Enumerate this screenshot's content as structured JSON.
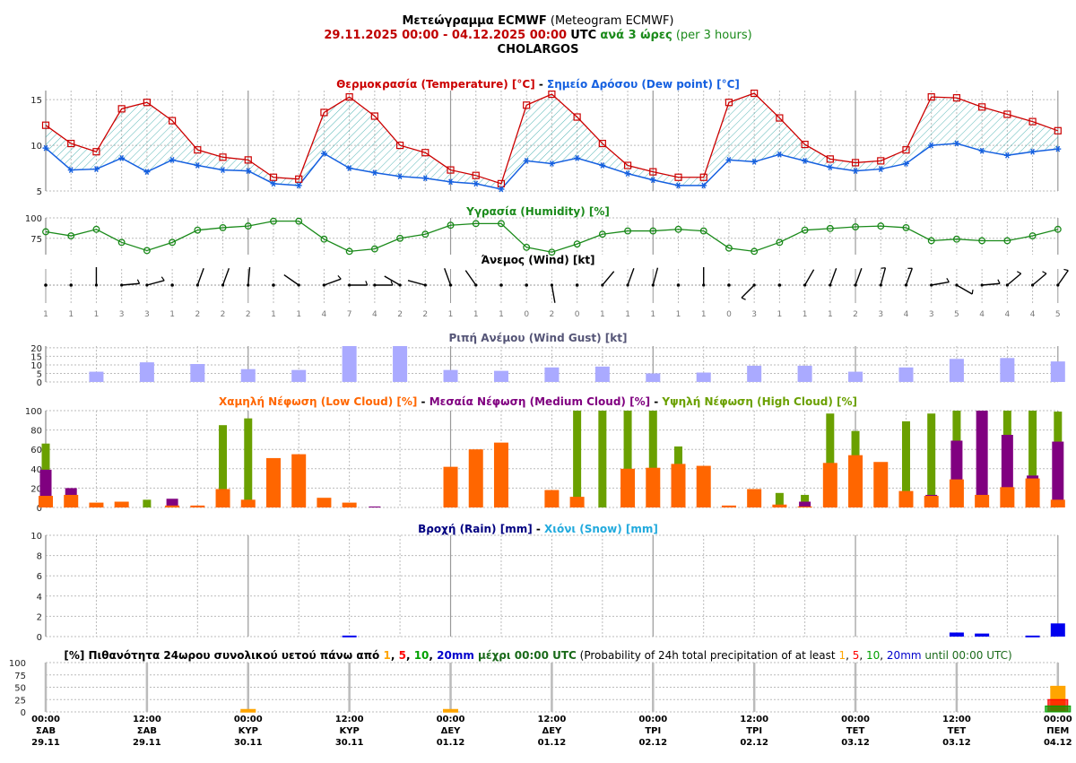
{
  "header": {
    "title_bold": "Μετεώγραμμα ECMWF",
    "title_en": "(Meteogram ECMWF)",
    "date_range": "29.11.2025 00:00 - 04.12.2025 00:00",
    "utc": "UTC",
    "interval_gr": "ανά 3 ώρες",
    "interval_en": "(per 3 hours)",
    "location": "CHOLARGOS"
  },
  "colors": {
    "temperature": "#cc0000",
    "dewpoint": "#1560e0",
    "humidity": "#1a8a1a",
    "gust": "#aaaaff",
    "low_cloud": "#ff6600",
    "medium_cloud": "#800080",
    "high_cloud": "#6aa000",
    "rain": "#0000ee",
    "snow": "#22aadd",
    "prob1": "#ffa500",
    "prob5": "#ff0000",
    "prob10": "#00a000",
    "prob20": "#0000cc"
  },
  "chart_data": [
    {
      "type": "line",
      "id": "temperature",
      "title_gr1": "Θερμοκρασία (Temperature) [°C]",
      "sep": " - ",
      "title_gr2": "Σημείο Δρόσου (Dew point) [°C]",
      "yticks": [
        5,
        10,
        15
      ],
      "ylim": [
        5,
        16
      ],
      "series": [
        {
          "name": "Temperature",
          "values": [
            12.2,
            10.2,
            9.3,
            14.0,
            14.7,
            12.7,
            9.5,
            8.7,
            8.4,
            6.5,
            6.3,
            13.6,
            15.3,
            13.2,
            10.0,
            9.2,
            7.3,
            6.7,
            5.8,
            14.4,
            15.6,
            13.1,
            10.2,
            7.8,
            7.1,
            6.5,
            6.5,
            14.7,
            15.7,
            13.0,
            10.1,
            8.5,
            8.1,
            8.3,
            9.5,
            15.3,
            15.2,
            14.2,
            13.4,
            12.6,
            11.6
          ]
        },
        {
          "name": "Dew point",
          "values": [
            9.7,
            7.3,
            7.4,
            8.6,
            7.1,
            8.4,
            7.8,
            7.3,
            7.2,
            5.8,
            5.6,
            9.1,
            7.5,
            7.0,
            6.6,
            6.4,
            6.0,
            5.8,
            5.2,
            8.3,
            8.0,
            8.6,
            7.8,
            6.9,
            6.2,
            5.6,
            5.6,
            8.4,
            8.2,
            9.0,
            8.3,
            7.6,
            7.2,
            7.4,
            8.0,
            10.0,
            10.2,
            9.4,
            8.9,
            9.3,
            9.6
          ]
        }
      ]
    },
    {
      "type": "line",
      "id": "humidity",
      "title": "Υγρασία (Humidity) [%]",
      "yticks": [
        75,
        100
      ],
      "ylim": [
        55,
        100
      ],
      "values": [
        83,
        78,
        86,
        70,
        60,
        70,
        85,
        88,
        90,
        96,
        96,
        74,
        59,
        62,
        75,
        80,
        91,
        93,
        93,
        64,
        58,
        68,
        80,
        84,
        84,
        86,
        84,
        63,
        59,
        70,
        85,
        87,
        89,
        90,
        88,
        72,
        74,
        72,
        72,
        78,
        86
      ]
    },
    {
      "type": "barbs",
      "id": "wind",
      "title": "Άνεμος (Wind) [kt]",
      "speed": [
        1,
        1,
        1,
        3,
        3,
        1,
        2,
        2,
        2,
        1,
        1,
        4,
        7,
        4,
        2,
        2,
        1,
        1,
        1,
        0,
        2,
        0,
        1,
        1,
        1,
        1,
        1,
        0,
        3,
        1,
        1,
        1,
        2,
        3,
        4,
        3,
        5,
        4,
        4,
        4,
        5
      ],
      "direction_deg": [
        null,
        null,
        0,
        85,
        75,
        null,
        20,
        20,
        5,
        null,
        305,
        70,
        90,
        90,
        300,
        285,
        340,
        325,
        null,
        null,
        170,
        null,
        40,
        20,
        15,
        null,
        0,
        null,
        225,
        null,
        30,
        20,
        20,
        15,
        20,
        80,
        120,
        85,
        50,
        50,
        35
      ]
    },
    {
      "type": "bar",
      "id": "gust",
      "title": "Ριπή Ανέμου (Wind Gust) [kt]",
      "yticks": [
        0,
        5,
        10,
        15,
        20
      ],
      "ylim": [
        0,
        21
      ],
      "step_index": 2,
      "start_index": 2,
      "values": [
        6,
        11.5,
        10.5,
        7.5,
        7,
        21,
        21,
        7,
        6.5,
        8.5,
        9,
        5,
        5.5,
        9.5,
        9.5,
        6,
        8.5,
        13.5,
        14,
        12
      ]
    },
    {
      "type": "bar",
      "id": "clouds",
      "title_low": "Χαμηλή Νέφωση (Low Cloud) [%]",
      "title_med": "Μεσαία Νέφωση (Medium Cloud) [%]",
      "title_high": "Υψηλή Νέφωση (High Cloud) [%]",
      "sep": " - ",
      "yticks": [
        0,
        20,
        40,
        60,
        80,
        100
      ],
      "ylim": [
        0,
        100
      ],
      "series": [
        {
          "name": "High",
          "values": [
            66,
            0,
            0,
            0,
            8,
            0,
            0,
            85,
            92,
            0,
            0,
            0,
            0,
            0,
            0,
            0,
            0,
            0,
            0,
            0,
            0,
            100,
            100,
            100,
            100,
            63,
            0,
            0,
            0,
            15,
            13,
            97,
            79,
            0,
            89,
            97,
            100,
            0,
            100,
            100,
            99
          ]
        },
        {
          "name": "Medium",
          "values": [
            39,
            20,
            0,
            0,
            0,
            9,
            0,
            0,
            0,
            0,
            0,
            0,
            0,
            1,
            0,
            0,
            0,
            0,
            0,
            0,
            0,
            0,
            0,
            0,
            0,
            0,
            0,
            0,
            0,
            0,
            6,
            0,
            0,
            0,
            0,
            13,
            69,
            100,
            75,
            33,
            68
          ]
        },
        {
          "name": "Low",
          "values": [
            12,
            13,
            5,
            6,
            0,
            2,
            2,
            19,
            8,
            51,
            55,
            10,
            5,
            0,
            0,
            0,
            42,
            60,
            67,
            0,
            18,
            11,
            0,
            40,
            41,
            45,
            43,
            2,
            19,
            3,
            1,
            46,
            54,
            47,
            17,
            12,
            29,
            13,
            21,
            30,
            8
          ]
        }
      ]
    },
    {
      "type": "bar",
      "id": "rain",
      "title_rain": "Βροχή (Rain) [mm]",
      "sep": " - ",
      "title_snow": "Χιόνι (Snow) [mm]",
      "yticks": [
        0,
        2,
        4,
        6,
        8,
        10
      ],
      "ylim": [
        0,
        10
      ],
      "values": [
        0,
        0,
        0,
        0,
        0,
        0,
        0,
        0,
        0,
        0,
        0,
        0,
        0.1,
        0,
        0,
        0,
        0,
        0,
        0,
        0,
        0,
        0,
        0,
        0,
        0,
        0,
        0,
        0,
        0,
        0,
        0,
        0,
        0,
        0,
        0,
        0,
        0.4,
        0.3,
        0,
        0.1,
        1.3
      ]
    },
    {
      "type": "bar",
      "id": "probability",
      "title_parts": [
        "[%] Πιθανότητα 24ωρου συνολικού υετού πάνω από ",
        "1",
        ", ",
        "5",
        ", ",
        "10",
        ", ",
        "20mm",
        " μέχρι 00:00 UTC"
      ],
      "title_en_parts": [
        " (Probability of 24h total precipitation of at least ",
        "1",
        ", ",
        "5",
        ", ",
        "10",
        ", ",
        "20mm",
        " until 00:00 UTC)"
      ],
      "yticks": [
        0,
        25,
        50,
        75,
        100
      ],
      "ylim": [
        0,
        100
      ],
      "days": [
        "30.11",
        "01.12",
        "02.12",
        "03.12",
        "04.12"
      ],
      "series": [
        {
          "name": "1mm",
          "values": [
            5,
            5,
            0,
            0,
            52
          ]
        },
        {
          "name": "5mm",
          "values": [
            0,
            0,
            0,
            0,
            25
          ]
        },
        {
          "name": "10mm",
          "values": [
            0,
            0,
            0,
            0,
            12
          ]
        },
        {
          "name": "20mm",
          "values": [
            0,
            0,
            0,
            0,
            0
          ]
        }
      ]
    }
  ],
  "x_axis": [
    {
      "time": "00:00",
      "day": "ΣΑΒ",
      "date": "29.11"
    },
    {
      "time": "12:00",
      "day": "ΣΑΒ",
      "date": "29.11"
    },
    {
      "time": "00:00",
      "day": "ΚΥΡ",
      "date": "30.11"
    },
    {
      "time": "12:00",
      "day": "ΚΥΡ",
      "date": "30.11"
    },
    {
      "time": "00:00",
      "day": "ΔΕΥ",
      "date": "01.12"
    },
    {
      "time": "12:00",
      "day": "ΔΕΥ",
      "date": "01.12"
    },
    {
      "time": "00:00",
      "day": "ΤΡΙ",
      "date": "02.12"
    },
    {
      "time": "12:00",
      "day": "ΤΡΙ",
      "date": "02.12"
    },
    {
      "time": "00:00",
      "day": "ΤΕΤ",
      "date": "03.12"
    },
    {
      "time": "12:00",
      "day": "ΤΕΤ",
      "date": "03.12"
    },
    {
      "time": "00:00",
      "day": "ΠΕΜ",
      "date": "04.12"
    }
  ]
}
